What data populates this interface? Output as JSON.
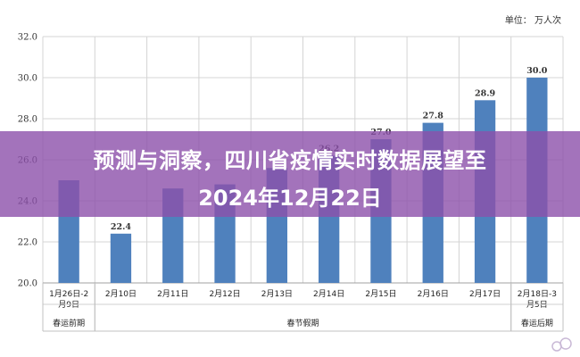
{
  "chart_data": {
    "type": "bar",
    "unit": "单位：  万人次",
    "categories": [
      "1月26日-2月9日",
      "2月10日",
      "2月11日",
      "2月12日",
      "2月13日",
      "2月14日",
      "2月15日",
      "2月16日",
      "2月17日",
      "2月18日-3月5日"
    ],
    "category_lines": [
      [
        "1月26日-2",
        "月9日"
      ],
      [
        "2月10日"
      ],
      [
        "2月11日"
      ],
      [
        "2月12日"
      ],
      [
        "2月13日"
      ],
      [
        "2月14日"
      ],
      [
        "2月15日"
      ],
      [
        "2月16日"
      ],
      [
        "2月17日"
      ],
      [
        "2月18日-3",
        "月5日"
      ]
    ],
    "values": [
      25.0,
      22.4,
      24.6,
      24.8,
      25.6,
      26.2,
      27.0,
      27.8,
      28.9,
      30.0
    ],
    "data_labels": [
      "",
      "22.4",
      "",
      "",
      "",
      "26.2",
      "27.0",
      "27.8",
      "28.9",
      "30.0"
    ],
    "groups": [
      {
        "label": "春运前期",
        "from": 0,
        "to": 0
      },
      {
        "label": "春节假期",
        "from": 1,
        "to": 8
      },
      {
        "label": "春运后期",
        "from": 9,
        "to": 9
      }
    ],
    "ylim": [
      20.0,
      32.0
    ],
    "yticks": [
      "20.0",
      "22.0",
      "24.0",
      "26.0",
      "28.0",
      "30.0",
      "32.0"
    ],
    "grid": true,
    "bar_color": "#4f81bd"
  },
  "overlay": {
    "line1": "预测与洞察，四川省疫情实时数据展望至",
    "line2": "2024年12月22日",
    "color": "#8c50aa"
  },
  "watermark_icon": "brand-logo-icon"
}
